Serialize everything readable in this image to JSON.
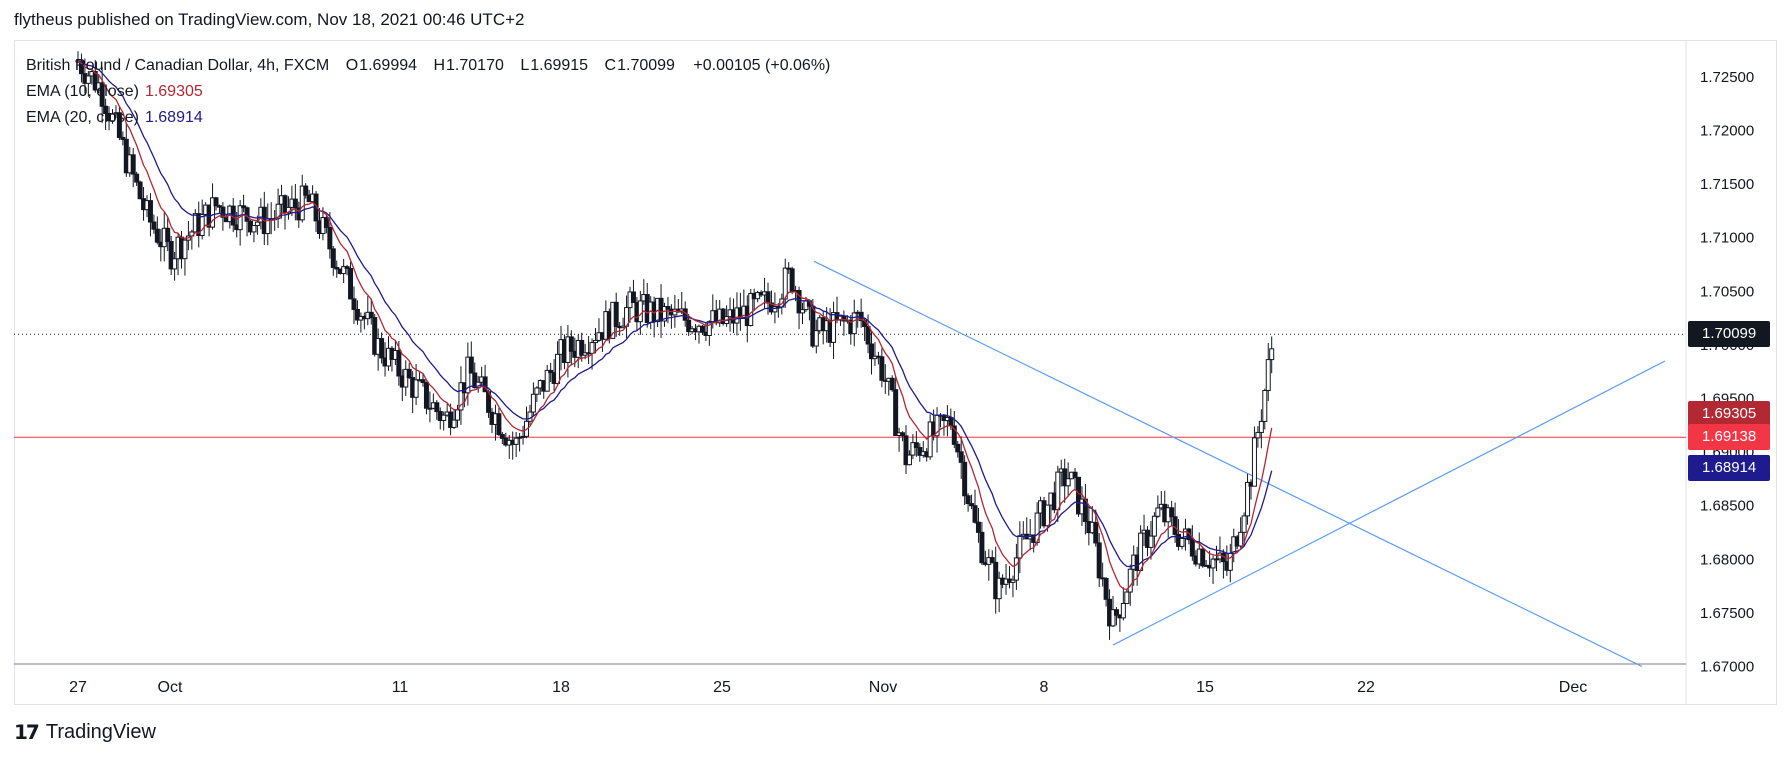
{
  "header": {
    "text": "flytheus published on TradingView.com, Nov 18, 2021 00:46 UTC+2"
  },
  "legend": {
    "symbol": "British Pound / Canadian Dollar, 4h, FXCM",
    "open_key": "O",
    "open": "1.69994",
    "high_key": "H",
    "high": "1.70170",
    "low_key": "L",
    "low": "1.69915",
    "close_key": "C",
    "close": "1.70099",
    "change": "+0.00105 (+0.06%)",
    "ema10_label": "EMA (10, close)",
    "ema10_value": "1.69305",
    "ema20_label": "EMA (20, close)",
    "ema20_value": "1.68914"
  },
  "price_tags": {
    "last": "1.70099",
    "ema10": "1.69305",
    "horizontal": "1.69138",
    "ema20": "1.68914"
  },
  "colors": {
    "up": "#131722",
    "ema10": "#b22833",
    "ema20": "#1e1b8f",
    "trendline": "#5b9cf6",
    "hline": "#f23645",
    "tag_last": "#131722",
    "tag_ema10": "#b22833",
    "tag_h": "#f23645",
    "tag_ema20": "#1e1b8f"
  },
  "footer": {
    "brand": "TradingView"
  },
  "chart_data": {
    "type": "candlestick",
    "symbol": "GBPCAD",
    "timeframe": "4h",
    "y_ticks": [
      "1.72500",
      "1.72000",
      "1.71500",
      "1.71000",
      "1.70500",
      "1.70000",
      "1.69500",
      "1.69000",
      "1.68500",
      "1.68000",
      "1.67500",
      "1.67000"
    ],
    "x_ticks": [
      "27",
      "Oct",
      "11",
      "18",
      "25",
      "Nov",
      "8",
      "15",
      "22",
      "Dec"
    ],
    "ylim": [
      1.67,
      1.7285
    ],
    "approx_close_path": [
      [
        "Sep 27",
        1.7265
      ],
      [
        "Sep 28",
        1.724
      ],
      [
        "Sep 29",
        1.718
      ],
      [
        "Sep 30",
        1.712
      ],
      [
        "Oct 1",
        1.7085
      ],
      [
        "Oct 3",
        1.713
      ],
      [
        "Oct 5",
        1.7115
      ],
      [
        "Oct 7",
        1.7135
      ],
      [
        "Oct 8",
        1.709
      ],
      [
        "Oct 10",
        1.7
      ],
      [
        "Oct 11",
        1.6975
      ],
      [
        "Oct 13",
        1.693
      ],
      [
        "Oct 14",
        1.6975
      ],
      [
        "Oct 16",
        1.6905
      ],
      [
        "Oct 17",
        1.6955
      ],
      [
        "Oct 18",
        1.699
      ],
      [
        "Oct 20",
        1.702
      ],
      [
        "Oct 21",
        1.7035
      ],
      [
        "Oct 23",
        1.7025
      ],
      [
        "Oct 25",
        1.702
      ],
      [
        "Oct 27",
        1.704
      ],
      [
        "Oct 28",
        1.7065
      ],
      [
        "Oct 29",
        1.701
      ],
      [
        "Oct 31",
        1.7025
      ],
      [
        "Nov 1",
        1.6975
      ],
      [
        "Nov 2",
        1.6895
      ],
      [
        "Nov 4",
        1.693
      ],
      [
        "Nov 5",
        1.683
      ],
      [
        "Nov 6",
        1.677
      ],
      [
        "Nov 7",
        1.681
      ],
      [
        "Nov 9",
        1.688
      ],
      [
        "Nov 10",
        1.683
      ],
      [
        "Nov 11",
        1.674
      ],
      [
        "Nov 12",
        1.68
      ],
      [
        "Nov 13",
        1.6845
      ],
      [
        "Nov 14",
        1.682
      ],
      [
        "Nov 16",
        1.679
      ],
      [
        "Nov 17",
        1.688
      ],
      [
        "Nov 18",
        1.701
      ]
    ],
    "indicators": [
      {
        "name": "EMA (10, close)",
        "last": 1.69305
      },
      {
        "name": "EMA (20, close)",
        "last": 1.68914
      }
    ],
    "horizontal_line": 1.69138,
    "trendlines": [
      {
        "from": [
          "Oct 29",
          1.7078
        ],
        "to": [
          "Dec 4",
          1.67
        ]
      },
      {
        "from": [
          "Nov 11",
          1.672
        ],
        "to": [
          "Dec 5",
          1.6985
        ]
      }
    ]
  }
}
